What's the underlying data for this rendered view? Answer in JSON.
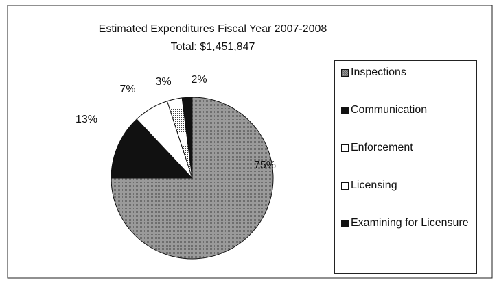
{
  "chart_data": {
    "type": "pie",
    "title": "Estimated Expenditures Fiscal Year 2007-2008",
    "subtitle": "Total: $1,451,847",
    "categories": [
      "Inspections",
      "Communication",
      "Enforcement",
      "Licensing",
      "Examining for Licensure"
    ],
    "values": [
      75,
      13,
      7,
      3,
      2
    ],
    "value_labels": [
      "75%",
      "13%",
      "7%",
      "3%",
      "2%"
    ],
    "colors": [
      "#8a8a8a",
      "#111111",
      "#ffffff",
      "#f4f4f4",
      "#111111"
    ],
    "legend": "right"
  }
}
